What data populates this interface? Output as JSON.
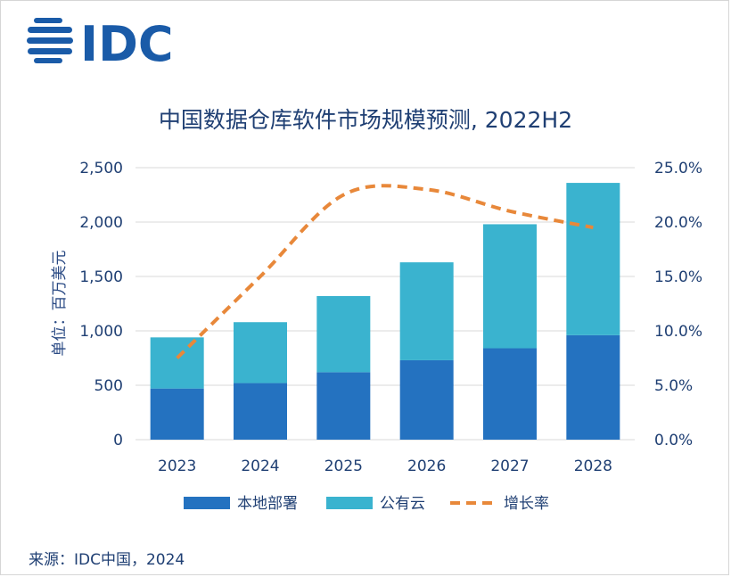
{
  "logo": {
    "text": "IDC",
    "color": "#1a5ba8"
  },
  "source": "来源：IDC中国，2024",
  "chart_data": {
    "type": "bar",
    "stacked": true,
    "title": "中国数据仓库软件市场规模预测, 2022H2",
    "ylabel": "单位：百万美元",
    "categories": [
      "2023",
      "2024",
      "2025",
      "2026",
      "2027",
      "2028"
    ],
    "ylim": [
      0,
      2500
    ],
    "yticks": [
      "0",
      "500",
      "1,000",
      "1,500",
      "2,000",
      "2,500"
    ],
    "y2lim": [
      0,
      25
    ],
    "y2ticks": [
      "0.0%",
      "5.0%",
      "10.0%",
      "15.0%",
      "20.0%",
      "25.0%"
    ],
    "grid": true,
    "legend_position": "bottom",
    "series": [
      {
        "name": "本地部署",
        "type": "bar",
        "color": "#2472c0",
        "values": [
          470,
          520,
          620,
          730,
          840,
          960
        ]
      },
      {
        "name": "公有云",
        "type": "bar",
        "color": "#3ab3cf",
        "values": [
          470,
          560,
          700,
          900,
          1140,
          1400
        ]
      },
      {
        "name": "增长率",
        "type": "line",
        "axis": "right",
        "style": "dashed",
        "color": "#e8883a",
        "values": [
          7.5,
          15.0,
          22.5,
          23.0,
          21.0,
          19.5
        ]
      }
    ]
  }
}
